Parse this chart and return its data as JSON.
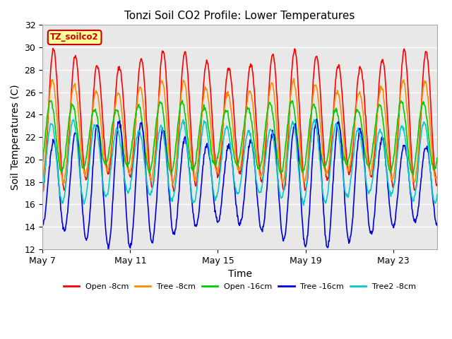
{
  "title": "Tonzi Soil CO2 Profile: Lower Temperatures",
  "xlabel": "Time",
  "ylabel": "Soil Temperatures (C)",
  "ylim": [
    12,
    32
  ],
  "yticks": [
    12,
    14,
    16,
    18,
    20,
    22,
    24,
    26,
    28,
    30,
    32
  ],
  "xtick_labels": [
    "May 7",
    "May 11",
    "May 15",
    "May 19",
    "May 23"
  ],
  "xtick_positions": [
    0,
    4,
    8,
    12,
    16
  ],
  "n_days": 18,
  "n_points_per_day": 48,
  "series": [
    {
      "label": "Open -8cm",
      "color": "#ff0000",
      "amplitude": 5.5,
      "mean": 23.5,
      "phase": -1.57,
      "trend": 0.0
    },
    {
      "label": "Tree -8cm",
      "color": "#ff8c00",
      "amplitude": 4.0,
      "mean": 22.5,
      "phase": -1.27,
      "trend": 0.0
    },
    {
      "label": "Open -16cm",
      "color": "#00cc00",
      "amplitude": 2.8,
      "mean": 22.0,
      "phase": -0.77,
      "trend": 0.0
    },
    {
      "label": "Tree -16cm",
      "color": "#0000dd",
      "amplitude": 4.5,
      "mean": 17.8,
      "phase": -1.57,
      "trend": 0.0
    },
    {
      "label": "Tree2 -8cm",
      "color": "#00cccc",
      "amplitude": 3.2,
      "mean": 19.8,
      "phase": -0.97,
      "trend": 0.0
    }
  ],
  "annotation_text": "TZ_soilco2",
  "annotation_bg": "#ffff99",
  "annotation_border": "#cc0000",
  "annotation_text_color": "#cc0000",
  "plot_bg_color": "#e8e8e8",
  "linewidth": 1.2
}
